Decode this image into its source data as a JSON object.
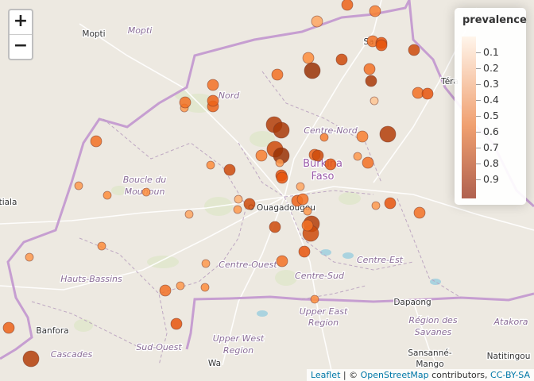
{
  "zoom": {
    "in_label": "+",
    "out_label": "−"
  },
  "legend": {
    "title": "prevalence",
    "ticks": [
      "0.1",
      "0.2",
      "0.3",
      "0.4",
      "0.5",
      "0.6",
      "0.7",
      "0.8",
      "0.9"
    ],
    "color_low": "#fff5eb",
    "color_mid": "#f0a070",
    "color_high": "#b0614f"
  },
  "attribution": {
    "leaflet": "Leaflet",
    "sep": " | © ",
    "osm": "OpenStreetMap",
    "contributors": " contributors, ",
    "license": "CC-BY-SA"
  },
  "places": [
    {
      "name": "Mopti",
      "kind": "city"
    },
    {
      "name": "Mopti",
      "kind": "region"
    },
    {
      "name": "Nord",
      "kind": "region"
    },
    {
      "name": "Centre-Nord",
      "kind": "region"
    },
    {
      "name": "Burkina",
      "kind": "country"
    },
    {
      "name": "Faso",
      "kind": "country"
    },
    {
      "name": "Boucle du",
      "kind": "region"
    },
    {
      "name": "Mouhoun",
      "kind": "region"
    },
    {
      "name": "Ouagadougou",
      "kind": "capital"
    },
    {
      "name": "Centre-Ouest",
      "kind": "region"
    },
    {
      "name": "Centre-Est",
      "kind": "region"
    },
    {
      "name": "Hauts-Bassins",
      "kind": "region"
    },
    {
      "name": "Centre-Sud",
      "kind": "region"
    },
    {
      "name": "Dapaong",
      "kind": "city"
    },
    {
      "name": "Upper East",
      "kind": "region"
    },
    {
      "name": "Region",
      "kind": "region"
    },
    {
      "name": "Région des",
      "kind": "region"
    },
    {
      "name": "Savanes",
      "kind": "region"
    },
    {
      "name": "Atakora",
      "kind": "region"
    },
    {
      "name": "Banfora",
      "kind": "city"
    },
    {
      "name": "Cascades",
      "kind": "region"
    },
    {
      "name": "Sud-Ouest",
      "kind": "region"
    },
    {
      "name": "Upper West",
      "kind": "region"
    },
    {
      "name": "Region",
      "kind": "region"
    },
    {
      "name": "Wa",
      "kind": "city"
    },
    {
      "name": "Sansanné-",
      "kind": "city"
    },
    {
      "name": "Mango",
      "kind": "city"
    },
    {
      "name": "Natitingou",
      "kind": "city"
    },
    {
      "name": "Téra",
      "kind": "city"
    },
    {
      "name": "Sa",
      "kind": "city"
    },
    {
      "name": "tiala",
      "kind": "city"
    }
  ],
  "sites": [
    {
      "prevalence": 0.5,
      "size": "medium"
    },
    {
      "prevalence": 0.75,
      "size": "medium"
    },
    {
      "prevalence": 0.65,
      "size": "medium"
    },
    {
      "prevalence": 0.7,
      "size": "medium"
    },
    {
      "prevalence": 0.8,
      "size": "medium"
    },
    {
      "prevalence": 0.85,
      "size": "medium"
    },
    {
      "prevalence": 0.6,
      "size": "medium"
    },
    {
      "prevalence": 0.95,
      "size": "large"
    },
    {
      "prevalence": 0.85,
      "size": "medium"
    },
    {
      "prevalence": 0.7,
      "size": "medium"
    },
    {
      "prevalence": 0.92,
      "size": "medium"
    },
    {
      "prevalence": 0.35,
      "size": "small"
    },
    {
      "prevalence": 0.7,
      "size": "medium"
    },
    {
      "prevalence": 0.8,
      "size": "medium"
    },
    {
      "prevalence": 0.7,
      "size": "medium"
    },
    {
      "prevalence": 0.7,
      "size": "medium"
    },
    {
      "prevalence": 0.75,
      "size": "medium"
    },
    {
      "prevalence": 0.55,
      "size": "small"
    },
    {
      "prevalence": 0.9,
      "size": "large"
    },
    {
      "prevalence": 0.92,
      "size": "large"
    },
    {
      "prevalence": 0.65,
      "size": "small"
    },
    {
      "prevalence": 0.9,
      "size": "large"
    },
    {
      "prevalence": 0.65,
      "size": "medium"
    },
    {
      "prevalence": 0.75,
      "size": "medium"
    },
    {
      "prevalence": 0.55,
      "size": "small"
    },
    {
      "prevalence": 0.85,
      "size": "large"
    },
    {
      "prevalence": 0.65,
      "size": "medium"
    },
    {
      "prevalence": 0.6,
      "size": "small"
    },
    {
      "prevalence": 0.85,
      "size": "medium"
    },
    {
      "prevalence": 0.8,
      "size": "medium"
    },
    {
      "prevalence": 0.7,
      "size": "medium"
    },
    {
      "prevalence": 0.95,
      "size": "large"
    },
    {
      "prevalence": 0.5,
      "size": "small"
    },
    {
      "prevalence": 0.8,
      "size": "medium"
    },
    {
      "prevalence": 0.75,
      "size": "medium"
    },
    {
      "prevalence": 0.6,
      "size": "small"
    },
    {
      "prevalence": 0.55,
      "size": "small"
    },
    {
      "prevalence": 0.6,
      "size": "small"
    },
    {
      "prevalence": 0.7,
      "size": "medium"
    },
    {
      "prevalence": 0.85,
      "size": "medium"
    },
    {
      "prevalence": 0.45,
      "size": "small"
    },
    {
      "prevalence": 0.55,
      "size": "small"
    },
    {
      "prevalence": 0.55,
      "size": "small"
    },
    {
      "prevalence": 0.9,
      "size": "large"
    },
    {
      "prevalence": 0.85,
      "size": "large"
    },
    {
      "prevalence": 0.8,
      "size": "medium"
    },
    {
      "prevalence": 0.85,
      "size": "medium"
    },
    {
      "prevalence": 0.55,
      "size": "small"
    },
    {
      "prevalence": 0.8,
      "size": "medium"
    },
    {
      "prevalence": 0.7,
      "size": "medium"
    },
    {
      "prevalence": 0.5,
      "size": "small"
    },
    {
      "prevalence": 0.55,
      "size": "small"
    },
    {
      "prevalence": 0.7,
      "size": "medium"
    },
    {
      "prevalence": 0.55,
      "size": "small"
    },
    {
      "prevalence": 0.6,
      "size": "small"
    },
    {
      "prevalence": 0.6,
      "size": "small"
    },
    {
      "prevalence": 0.55,
      "size": "small"
    },
    {
      "prevalence": 0.7,
      "size": "medium"
    },
    {
      "prevalence": 0.8,
      "size": "medium"
    },
    {
      "prevalence": 0.75,
      "size": "medium"
    },
    {
      "prevalence": 0.6,
      "size": "small"
    },
    {
      "prevalence": 0.7,
      "size": "medium"
    },
    {
      "prevalence": 0.55,
      "size": "small"
    },
    {
      "prevalence": 0.8,
      "size": "medium"
    },
    {
      "prevalence": 0.75,
      "size": "medium"
    },
    {
      "prevalence": 0.7,
      "size": "medium"
    },
    {
      "prevalence": 0.85,
      "size": "medium"
    },
    {
      "prevalence": 0.8,
      "size": "medium"
    },
    {
      "prevalence": 0.7,
      "size": "medium"
    },
    {
      "prevalence": 0.9,
      "size": "large"
    }
  ]
}
